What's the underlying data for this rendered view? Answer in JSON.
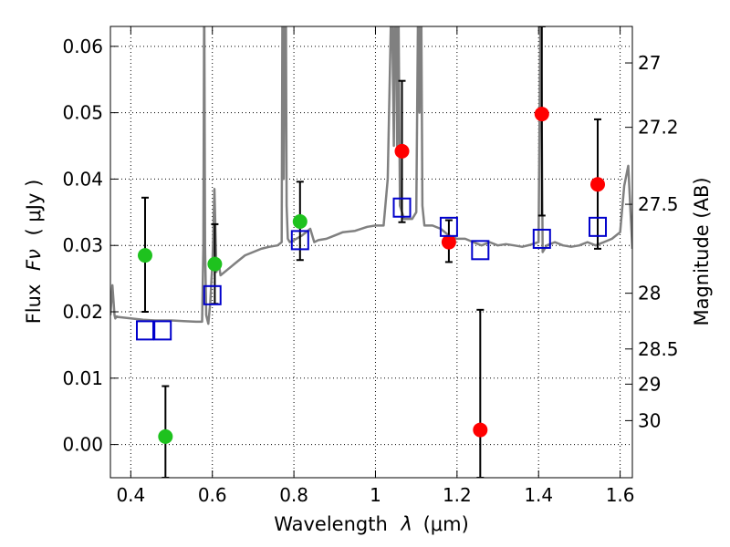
{
  "chart_data": {
    "type": "scatter",
    "xlabel_prefix": "Wavelength",
    "xlabel_symbol": "λ",
    "xlabel_unit": "(μm)",
    "ylabel_prefix": "Flux",
    "ylabel_symbol": "Fν",
    "ylabel_unit": "( μJy )",
    "ylabel_right": "Magnitude (AB)",
    "xlim": [
      0.35,
      1.63
    ],
    "ylim": [
      -0.005,
      0.063
    ],
    "grid": true,
    "x_ticks": [
      0.4,
      0.6,
      0.8,
      1.0,
      1.2,
      1.4,
      1.6
    ],
    "x_tick_labels": [
      "0.4",
      "0.6",
      "0.8",
      "1",
      "1.2",
      "1.4",
      "1.6"
    ],
    "y_ticks": [
      0.0,
      0.01,
      0.02,
      0.03,
      0.04,
      0.05,
      0.06
    ],
    "y_tick_labels": [
      "0.00",
      "0.01",
      "0.02",
      "0.03",
      "0.04",
      "0.05",
      "0.06"
    ],
    "right_ticks": [
      {
        "label": "27",
        "flux": 0.0575
      },
      {
        "label": "27.2",
        "flux": 0.0478
      },
      {
        "label": "27.5",
        "flux": 0.0362
      },
      {
        "label": "28",
        "flux": 0.0228
      },
      {
        "label": "28.5",
        "flux": 0.0144
      },
      {
        "label": "29",
        "flux": 0.0091
      },
      {
        "label": "30",
        "flux": 0.0036
      }
    ],
    "colors": {
      "green": "#1ec21e",
      "red": "#ff0000",
      "blue": "#0000cc",
      "spectrum": "#808080"
    },
    "series": [
      {
        "name": "green-photometry",
        "color": "green",
        "points": [
          {
            "x": 0.435,
            "y": 0.0285,
            "yerr_low": 0.02,
            "yerr_high": 0.0372
          },
          {
            "x": 0.485,
            "y": 0.0012,
            "yerr_low": -0.005,
            "yerr_high": 0.0088
          },
          {
            "x": 0.606,
            "y": 0.0272,
            "yerr_low": 0.0212,
            "yerr_high": 0.0332
          },
          {
            "x": 0.815,
            "y": 0.0336,
            "yerr_low": 0.0278,
            "yerr_high": 0.0396
          }
        ]
      },
      {
        "name": "red-photometry",
        "color": "red",
        "points": [
          {
            "x": 1.065,
            "y": 0.0442,
            "yerr_low": 0.0335,
            "yerr_high": 0.0548
          },
          {
            "x": 1.18,
            "y": 0.0305,
            "yerr_low": 0.0275,
            "yerr_high": 0.0338
          },
          {
            "x": 1.257,
            "y": 0.0022,
            "yerr_low": -0.005,
            "yerr_high": 0.0203
          },
          {
            "x": 1.408,
            "y": 0.0498,
            "yerr_low": 0.0345,
            "yerr_high": 0.063
          },
          {
            "x": 1.545,
            "y": 0.0392,
            "yerr_low": 0.0295,
            "yerr_high": 0.049
          }
        ]
      },
      {
        "name": "model-photometry",
        "color": "blue",
        "marker": "square",
        "points": [
          {
            "x": 0.435,
            "y": 0.0172
          },
          {
            "x": 0.478,
            "y": 0.0172
          },
          {
            "x": 0.6,
            "y": 0.0225
          },
          {
            "x": 0.815,
            "y": 0.0308
          },
          {
            "x": 1.065,
            "y": 0.0357
          },
          {
            "x": 1.18,
            "y": 0.0328
          },
          {
            "x": 1.257,
            "y": 0.0293
          },
          {
            "x": 1.408,
            "y": 0.031
          },
          {
            "x": 1.545,
            "y": 0.0328
          }
        ]
      }
    ],
    "spectrum": {
      "name": "model-spectrum",
      "x": [
        0.35,
        0.355,
        0.36,
        0.362,
        0.365,
        0.37,
        0.4,
        0.43,
        0.46,
        0.5,
        0.53,
        0.56,
        0.575,
        0.578,
        0.58,
        0.582,
        0.585,
        0.59,
        0.595,
        0.598,
        0.6,
        0.602,
        0.605,
        0.61,
        0.615,
        0.62,
        0.64,
        0.66,
        0.68,
        0.7,
        0.72,
        0.74,
        0.76,
        0.77,
        0.772,
        0.775,
        0.778,
        0.78,
        0.782,
        0.785,
        0.79,
        0.8,
        0.82,
        0.84,
        0.85,
        0.86,
        0.88,
        0.9,
        0.92,
        0.95,
        0.98,
        1.0,
        1.02,
        1.03,
        1.04,
        1.045,
        1.048,
        1.05,
        1.053,
        1.056,
        1.06,
        1.07,
        1.08,
        1.09,
        1.1,
        1.105,
        1.108,
        1.11,
        1.112,
        1.115,
        1.12,
        1.14,
        1.16,
        1.18,
        1.2,
        1.22,
        1.24,
        1.26,
        1.28,
        1.3,
        1.32,
        1.34,
        1.36,
        1.38,
        1.4,
        1.405,
        1.41,
        1.42,
        1.44,
        1.46,
        1.48,
        1.5,
        1.52,
        1.54,
        1.56,
        1.58,
        1.6,
        1.61,
        1.62,
        1.63
      ],
      "y": [
        0.0195,
        0.024,
        0.0195,
        0.019,
        0.0193,
        0.0192,
        0.019,
        0.0188,
        0.0187,
        0.0187,
        0.0186,
        0.0185,
        0.0185,
        0.03,
        0.07,
        0.03,
        0.0195,
        0.0182,
        0.0215,
        0.025,
        0.027,
        0.031,
        0.0385,
        0.026,
        0.0275,
        0.0255,
        0.0265,
        0.0275,
        0.0285,
        0.029,
        0.0295,
        0.0298,
        0.03,
        0.0305,
        0.07,
        0.04,
        0.07,
        0.07,
        0.036,
        0.031,
        0.0305,
        0.0308,
        0.0315,
        0.0325,
        0.0305,
        0.0308,
        0.031,
        0.0315,
        0.032,
        0.0322,
        0.0328,
        0.033,
        0.033,
        0.04,
        0.07,
        0.045,
        0.07,
        0.07,
        0.045,
        0.07,
        0.036,
        0.034,
        0.034,
        0.034,
        0.035,
        0.07,
        0.05,
        0.07,
        0.07,
        0.036,
        0.033,
        0.033,
        0.0325,
        0.0315,
        0.031,
        0.031,
        0.0305,
        0.03,
        0.0305,
        0.03,
        0.0302,
        0.03,
        0.0298,
        0.0301,
        0.0305,
        0.07,
        0.029,
        0.03,
        0.0305,
        0.03,
        0.0298,
        0.03,
        0.0305,
        0.03,
        0.0305,
        0.031,
        0.032,
        0.039,
        0.042,
        0.0295
      ]
    }
  }
}
